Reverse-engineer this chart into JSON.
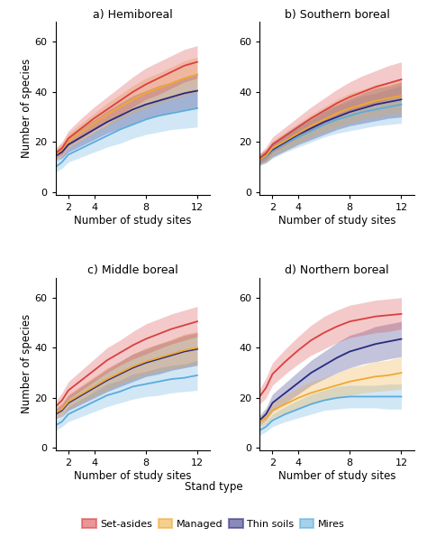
{
  "panels": [
    {
      "title": "a) Hemiboreal",
      "key": "hemiboreal"
    },
    {
      "title": "b) Southern boreal",
      "key": "southern_boreal"
    },
    {
      "title": "c) Middle boreal",
      "key": "middle_boreal"
    },
    {
      "title": "d) Northern boreal",
      "key": "northern_boreal"
    }
  ],
  "x_ticks": [
    2,
    4,
    8,
    12
  ],
  "x_label": "Number of study sites",
  "y_label": "Number of species",
  "y_ticks": [
    0,
    20,
    40,
    60
  ],
  "ylim": [
    -1,
    68
  ],
  "xlim": [
    1,
    13
  ],
  "legend_title": "Stand type",
  "legend_entries": [
    "Set-asides",
    "Managed",
    "Thin soils",
    "Mires"
  ],
  "series_colors": [
    "#d94040",
    "#f0a830",
    "#2a2a80",
    "#5aacdc"
  ],
  "fill_alpha": 0.28,
  "line_width": 1.3,
  "curves": {
    "hemiboreal": {
      "set_asides": {
        "mean": [
          15.5,
          17.5,
          21.5,
          25.5,
          29.5,
          33.0,
          36.5,
          40.0,
          43.0,
          45.5,
          48.0,
          50.5,
          52.0
        ],
        "lo": [
          13.5,
          15.0,
          18.5,
          21.5,
          25.0,
          28.0,
          31.0,
          34.0,
          37.0,
          39.0,
          41.5,
          44.0,
          45.5
        ],
        "hi": [
          17.5,
          20.0,
          24.5,
          29.5,
          34.0,
          38.0,
          42.0,
          46.0,
          49.5,
          52.0,
          54.5,
          57.0,
          58.5
        ]
      },
      "managed": {
        "mean": [
          15.0,
          17.0,
          20.5,
          24.0,
          27.5,
          31.0,
          34.0,
          37.0,
          39.5,
          41.5,
          43.5,
          45.5,
          47.0
        ],
        "lo": [
          13.0,
          14.5,
          17.5,
          20.5,
          23.5,
          26.5,
          29.0,
          31.5,
          33.5,
          35.5,
          37.0,
          38.5,
          40.0
        ],
        "hi": [
          17.0,
          19.5,
          23.5,
          27.5,
          31.5,
          35.5,
          39.0,
          42.5,
          45.5,
          47.5,
          50.0,
          52.5,
          54.0
        ]
      },
      "thin_soils": {
        "mean": [
          14.5,
          16.0,
          19.0,
          22.0,
          25.0,
          28.0,
          30.5,
          33.0,
          35.0,
          36.5,
          38.0,
          39.5,
          40.5
        ],
        "lo": [
          12.5,
          13.5,
          16.0,
          18.5,
          21.0,
          23.5,
          25.5,
          27.5,
          29.5,
          30.5,
          32.0,
          33.0,
          33.5
        ],
        "hi": [
          16.5,
          18.5,
          22.0,
          25.5,
          29.0,
          32.5,
          35.5,
          38.5,
          40.5,
          42.5,
          44.0,
          46.0,
          47.5
        ]
      },
      "mires": {
        "mean": [
          10.0,
          12.0,
          15.0,
          17.5,
          20.0,
          22.5,
          25.0,
          27.0,
          29.0,
          30.5,
          31.5,
          32.5,
          33.5
        ],
        "lo": [
          8.0,
          9.5,
          12.0,
          14.0,
          16.0,
          18.0,
          19.5,
          21.5,
          23.0,
          24.0,
          25.0,
          25.5,
          26.0
        ],
        "hi": [
          12.0,
          14.5,
          18.0,
          21.0,
          24.0,
          27.0,
          30.5,
          32.5,
          35.0,
          37.0,
          38.0,
          39.5,
          41.0
        ]
      }
    },
    "southern_boreal": {
      "set_asides": {
        "mean": [
          13.5,
          15.5,
          19.0,
          22.5,
          26.0,
          29.5,
          32.5,
          35.5,
          38.0,
          40.0,
          42.0,
          43.5,
          45.0
        ],
        "lo": [
          11.5,
          13.0,
          16.0,
          19.0,
          22.0,
          25.0,
          27.5,
          30.0,
          32.0,
          33.5,
          35.5,
          37.0,
          38.0
        ],
        "hi": [
          15.5,
          18.0,
          22.0,
          26.0,
          30.0,
          34.0,
          37.5,
          41.0,
          44.0,
          46.5,
          48.5,
          50.5,
          52.0
        ]
      },
      "managed": {
        "mean": [
          13.0,
          14.5,
          17.5,
          20.5,
          23.5,
          26.5,
          29.0,
          31.5,
          33.5,
          35.0,
          36.5,
          37.5,
          38.5
        ],
        "lo": [
          11.0,
          12.0,
          14.5,
          17.0,
          19.5,
          22.0,
          24.0,
          26.0,
          27.5,
          29.0,
          30.0,
          31.0,
          31.5
        ],
        "hi": [
          15.0,
          17.0,
          20.5,
          24.0,
          27.5,
          31.0,
          34.0,
          37.0,
          39.5,
          41.0,
          43.0,
          44.0,
          45.5
        ]
      },
      "thin_soils": {
        "mean": [
          13.0,
          14.5,
          17.0,
          20.0,
          23.0,
          25.5,
          28.0,
          30.0,
          32.0,
          33.5,
          35.0,
          36.0,
          37.0
        ],
        "lo": [
          11.0,
          12.0,
          14.0,
          16.5,
          19.0,
          21.0,
          23.0,
          25.0,
          26.5,
          27.5,
          28.5,
          29.5,
          30.0
        ],
        "hi": [
          15.0,
          17.0,
          20.0,
          23.5,
          27.0,
          30.0,
          33.0,
          35.0,
          37.5,
          39.5,
          41.5,
          42.5,
          44.0
        ]
      },
      "mires": {
        "mean": [
          12.5,
          14.0,
          16.5,
          19.5,
          22.0,
          24.5,
          27.0,
          29.0,
          30.5,
          32.0,
          33.0,
          34.0,
          35.0
        ],
        "lo": [
          10.5,
          11.5,
          13.5,
          16.0,
          18.0,
          20.0,
          22.0,
          23.5,
          24.5,
          25.5,
          26.5,
          27.0,
          27.5
        ],
        "hi": [
          14.5,
          16.5,
          19.5,
          23.0,
          26.0,
          29.0,
          32.0,
          34.5,
          36.5,
          38.5,
          39.5,
          41.0,
          42.5
        ]
      }
    },
    "middle_boreal": {
      "set_asides": {
        "mean": [
          16.5,
          19.0,
          23.0,
          27.0,
          31.0,
          35.0,
          38.0,
          41.0,
          43.5,
          45.5,
          47.5,
          49.0,
          50.5
        ],
        "lo": [
          14.5,
          16.0,
          19.5,
          23.0,
          26.5,
          30.0,
          33.0,
          35.5,
          37.5,
          39.5,
          41.5,
          43.0,
          44.5
        ],
        "hi": [
          18.5,
          22.0,
          26.5,
          31.0,
          35.5,
          40.0,
          43.0,
          46.5,
          49.5,
          51.5,
          53.5,
          55.0,
          56.5
        ]
      },
      "managed": {
        "mean": [
          14.0,
          15.5,
          18.5,
          21.5,
          24.5,
          27.5,
          30.0,
          32.5,
          34.5,
          36.0,
          37.5,
          39.0,
          40.0
        ],
        "lo": [
          12.0,
          13.0,
          15.5,
          18.0,
          20.5,
          23.0,
          25.5,
          27.5,
          29.0,
          30.5,
          31.5,
          32.5,
          33.5
        ],
        "hi": [
          16.0,
          18.0,
          21.5,
          25.0,
          28.5,
          32.0,
          34.5,
          37.5,
          40.0,
          41.5,
          43.5,
          45.5,
          46.5
        ]
      },
      "thin_soils": {
        "mean": [
          13.5,
          15.0,
          18.0,
          21.0,
          24.0,
          27.0,
          29.5,
          32.0,
          34.0,
          35.5,
          37.0,
          38.5,
          39.5
        ],
        "lo": [
          11.5,
          12.5,
          15.0,
          17.5,
          20.0,
          22.5,
          24.5,
          26.5,
          28.5,
          29.5,
          31.0,
          32.0,
          33.0
        ],
        "hi": [
          15.5,
          17.5,
          21.0,
          24.5,
          28.0,
          31.5,
          34.5,
          37.5,
          39.5,
          41.5,
          43.0,
          45.0,
          46.0
        ]
      },
      "mires": {
        "mean": [
          9.0,
          10.5,
          13.5,
          16.0,
          18.5,
          21.0,
          22.5,
          24.5,
          25.5,
          26.5,
          27.5,
          28.0,
          29.0
        ],
        "lo": [
          7.0,
          8.5,
          10.5,
          12.5,
          14.5,
          16.5,
          18.0,
          19.5,
          20.5,
          21.0,
          22.0,
          22.5,
          23.0
        ],
        "hi": [
          11.0,
          12.5,
          16.5,
          19.5,
          22.5,
          25.5,
          27.0,
          29.5,
          30.5,
          32.0,
          33.0,
          33.5,
          35.0
        ]
      }
    },
    "northern_boreal": {
      "set_asides": {
        "mean": [
          20.5,
          24.0,
          29.5,
          34.5,
          39.0,
          43.0,
          46.0,
          48.5,
          50.5,
          51.5,
          52.5,
          53.0,
          53.5
        ],
        "lo": [
          17.5,
          20.0,
          25.0,
          29.5,
          33.5,
          37.0,
          39.5,
          42.0,
          44.0,
          45.0,
          46.0,
          46.5,
          47.5
        ],
        "hi": [
          23.5,
          28.0,
          34.0,
          39.5,
          44.5,
          49.0,
          52.5,
          55.0,
          57.0,
          58.0,
          59.0,
          59.5,
          60.0
        ]
      },
      "managed": {
        "mean": [
          10.5,
          12.0,
          15.0,
          17.5,
          20.0,
          22.0,
          23.5,
          25.0,
          26.5,
          27.5,
          28.5,
          29.0,
          30.0
        ],
        "lo": [
          8.5,
          9.5,
          12.0,
          14.0,
          16.0,
          17.5,
          19.0,
          20.0,
          21.0,
          22.0,
          22.5,
          23.0,
          23.5
        ],
        "hi": [
          12.5,
          14.5,
          18.0,
          21.0,
          24.0,
          26.5,
          28.0,
          30.0,
          32.0,
          33.0,
          34.5,
          35.0,
          36.5
        ]
      },
      "thin_soils": {
        "mean": [
          11.0,
          13.5,
          18.0,
          22.0,
          26.0,
          30.0,
          33.0,
          36.0,
          38.5,
          40.0,
          41.5,
          42.5,
          43.5
        ],
        "lo": [
          9.0,
          11.0,
          14.5,
          18.0,
          21.5,
          25.0,
          27.5,
          30.0,
          32.0,
          33.5,
          34.5,
          35.5,
          36.5
        ],
        "hi": [
          13.0,
          16.0,
          21.5,
          26.0,
          30.5,
          35.0,
          38.5,
          42.0,
          45.0,
          46.5,
          48.5,
          49.5,
          50.5
        ]
      },
      "mires": {
        "mean": [
          7.0,
          8.5,
          11.0,
          13.5,
          15.5,
          17.5,
          19.0,
          20.0,
          20.5,
          20.5,
          20.5,
          20.5,
          20.5
        ],
        "lo": [
          5.0,
          6.5,
          8.5,
          10.5,
          12.0,
          13.5,
          15.0,
          15.5,
          16.0,
          16.0,
          16.0,
          15.5,
          15.5
        ],
        "hi": [
          9.0,
          10.5,
          13.5,
          16.5,
          19.0,
          21.5,
          23.0,
          24.5,
          25.0,
          25.0,
          25.0,
          25.5,
          25.5
        ]
      }
    }
  },
  "x_points": [
    1,
    1.5,
    2,
    3,
    4,
    5,
    6,
    7,
    8,
    9,
    10,
    11,
    12
  ]
}
